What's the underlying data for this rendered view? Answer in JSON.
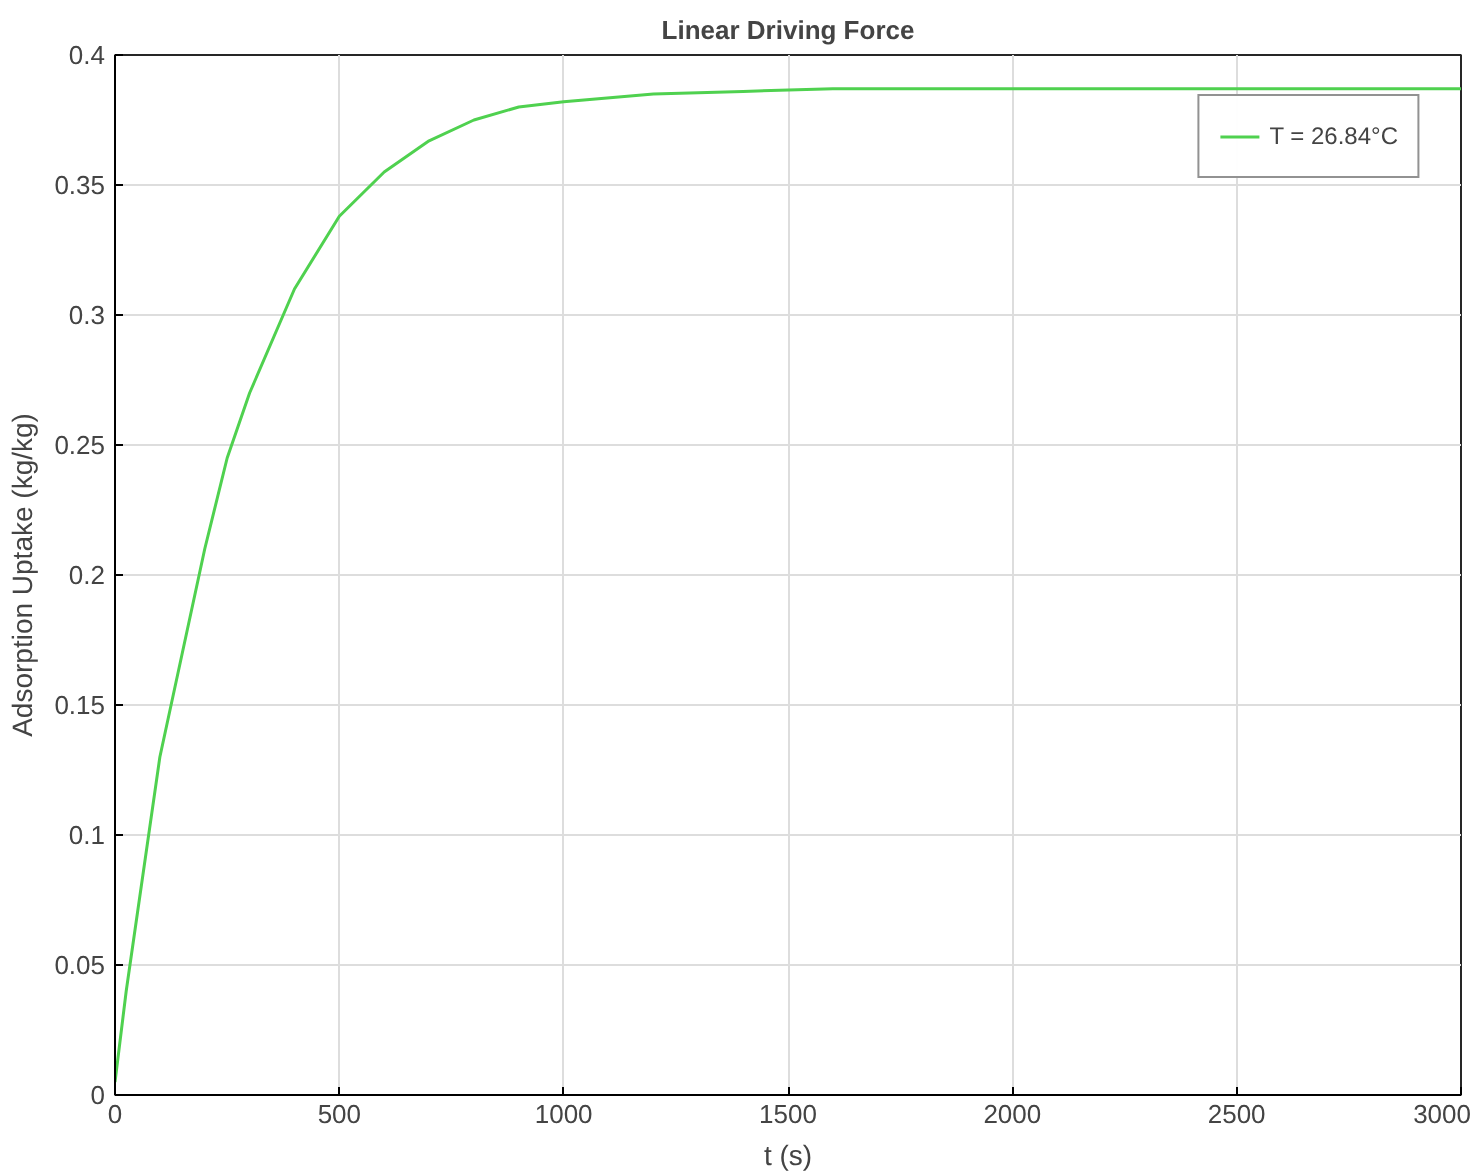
{
  "chart_data": {
    "type": "line",
    "title": "Linear Driving Force",
    "xlabel": "t (s)",
    "ylabel": "Adsorption Uptake (kg/kg)",
    "x": [
      0,
      25,
      50,
      100,
      150,
      200,
      250,
      300,
      400,
      500,
      600,
      700,
      800,
      900,
      1000,
      1200,
      1400,
      1600,
      2000,
      2500,
      3000
    ],
    "series": [
      {
        "name": "T = 26.84°C",
        "color": "#4fd14f",
        "values": [
          0.005,
          0.04,
          0.07,
          0.13,
          0.17,
          0.21,
          0.245,
          0.27,
          0.31,
          0.338,
          0.355,
          0.367,
          0.375,
          0.38,
          0.382,
          0.385,
          0.386,
          0.387,
          0.387,
          0.387,
          0.387
        ]
      }
    ],
    "xlim": [
      0,
      3000
    ],
    "ylim": [
      0,
      0.4
    ],
    "xticks": [
      0,
      500,
      1000,
      1500,
      2000,
      2500,
      3000
    ],
    "yticks": [
      0,
      0.05,
      0.1,
      0.15,
      0.2,
      0.25,
      0.3,
      0.35,
      0.4
    ],
    "grid": true,
    "legend": "top right",
    "marker": "none",
    "line_style": "solid"
  }
}
